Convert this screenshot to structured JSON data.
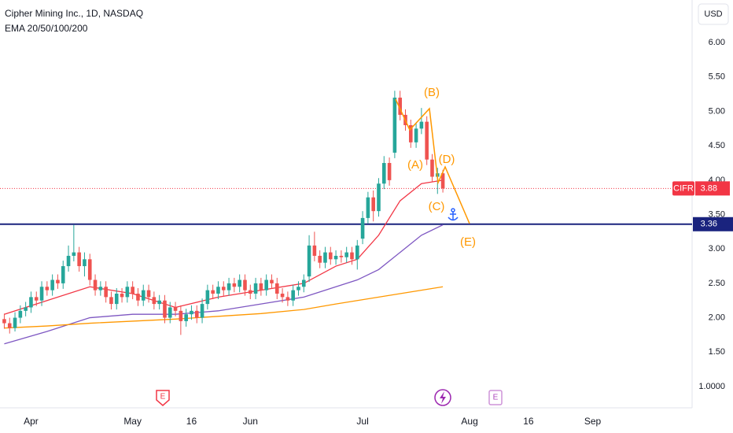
{
  "chart_data": {
    "type": "candlestick",
    "title": "Cipher Mining Inc., 1D, NASDAQ",
    "subtitle": "EMA 20/50/100/200",
    "currency": "USD",
    "symbol": "CIFR",
    "last_price": 3.88,
    "level": 3.36,
    "up_color": "#26a69a",
    "down_color": "#ef5350",
    "open": [
      1.98,
      1.92,
      1.85,
      2.0,
      2.1,
      2.15,
      2.3,
      2.25,
      2.45,
      2.4,
      2.55,
      2.5,
      2.75,
      2.9,
      2.95,
      2.75,
      2.85,
      2.55,
      2.4,
      2.45,
      2.3,
      2.2,
      2.35,
      2.3,
      2.45,
      2.35,
      2.25,
      2.4,
      2.3,
      2.2,
      2.25,
      2.0,
      2.15,
      2.1,
      1.95,
      2.05,
      2.1,
      2.0,
      2.2,
      2.4,
      2.35,
      2.45,
      2.4,
      2.5,
      2.45,
      2.55,
      2.4,
      2.35,
      2.5,
      2.4,
      2.55,
      2.5,
      2.35,
      2.3,
      2.25,
      2.4,
      2.45,
      2.6,
      3.05,
      2.9,
      2.8,
      2.95,
      2.85,
      2.9,
      2.88,
      2.95,
      2.85,
      3.15,
      3.45,
      3.75,
      3.55,
      3.95,
      4.25,
      4.4,
      5.2,
      4.95,
      4.8,
      4.55,
      4.75,
      4.85,
      4.3,
      4.05,
      4.1
    ],
    "high": [
      2.06,
      2.0,
      2.08,
      2.18,
      2.23,
      2.38,
      2.38,
      2.53,
      2.53,
      2.63,
      2.63,
      2.83,
      3.05,
      3.35,
      3.03,
      2.95,
      2.93,
      2.63,
      2.53,
      2.53,
      2.38,
      2.43,
      2.43,
      2.53,
      2.53,
      2.43,
      2.48,
      2.48,
      2.38,
      2.33,
      2.33,
      2.23,
      2.23,
      2.18,
      2.13,
      2.18,
      2.18,
      2.28,
      2.48,
      2.48,
      2.53,
      2.53,
      2.58,
      2.58,
      2.63,
      2.63,
      2.48,
      2.58,
      2.58,
      2.63,
      2.63,
      2.58,
      2.43,
      2.38,
      2.48,
      2.53,
      2.63,
      3.2,
      3.25,
      2.98,
      3.03,
      3.03,
      2.98,
      2.98,
      3.03,
      3.03,
      3.13,
      3.55,
      3.83,
      3.85,
      4.03,
      4.35,
      4.33,
      5.3,
      5.3,
      5.03,
      4.88,
      4.83,
      5.05,
      4.93,
      4.38,
      4.18,
      4.15
    ],
    "low": [
      1.84,
      1.77,
      1.8,
      1.92,
      2.02,
      2.07,
      2.17,
      2.17,
      2.32,
      2.32,
      2.42,
      2.42,
      2.67,
      2.82,
      2.67,
      2.6,
      2.47,
      2.32,
      2.32,
      2.22,
      2.12,
      2.12,
      2.22,
      2.22,
      2.27,
      2.17,
      2.17,
      2.22,
      2.12,
      2.12,
      1.92,
      1.92,
      2.02,
      1.75,
      1.87,
      1.97,
      1.92,
      1.92,
      2.12,
      2.27,
      2.27,
      2.32,
      2.32,
      2.37,
      2.37,
      2.32,
      2.27,
      2.27,
      2.32,
      2.32,
      2.42,
      2.27,
      2.22,
      2.17,
      2.17,
      2.32,
      2.37,
      2.52,
      2.82,
      2.72,
      2.72,
      2.77,
      2.77,
      2.8,
      2.8,
      2.77,
      2.7,
      3.07,
      3.37,
      3.4,
      3.47,
      3.87,
      3.92,
      4.32,
      4.87,
      4.72,
      4.47,
      4.47,
      4.67,
      4.22,
      3.97,
      3.8,
      3.82
    ],
    "close": [
      1.92,
      1.85,
      2.0,
      2.1,
      2.15,
      2.3,
      2.25,
      2.45,
      2.4,
      2.55,
      2.5,
      2.75,
      2.9,
      2.95,
      2.75,
      2.85,
      2.55,
      2.4,
      2.45,
      2.3,
      2.2,
      2.35,
      2.3,
      2.45,
      2.35,
      2.25,
      2.4,
      2.3,
      2.2,
      2.25,
      2.0,
      2.15,
      2.1,
      1.95,
      2.05,
      2.1,
      2.0,
      2.2,
      2.4,
      2.35,
      2.45,
      2.4,
      2.5,
      2.45,
      2.55,
      2.4,
      2.35,
      2.5,
      2.4,
      2.55,
      2.5,
      2.35,
      2.3,
      2.25,
      2.4,
      2.45,
      2.55,
      3.05,
      2.9,
      2.8,
      2.95,
      2.85,
      2.9,
      2.88,
      2.95,
      2.85,
      3.05,
      3.45,
      3.75,
      3.55,
      3.95,
      4.25,
      4.0,
      5.2,
      4.95,
      4.8,
      4.55,
      4.75,
      4.85,
      4.3,
      4.05,
      4.1,
      3.88
    ],
    "series": [
      {
        "color": "#f23645",
        "x": [
          0,
          8,
          16,
          24,
          32,
          40,
          48,
          56,
          62,
          66,
          70,
          74,
          78,
          82
        ],
        "values": [
          2.05,
          2.25,
          2.45,
          2.35,
          2.15,
          2.3,
          2.4,
          2.5,
          2.75,
          2.85,
          3.2,
          3.7,
          3.95,
          4.0
        ]
      },
      {
        "color": "#7e57c2",
        "x": [
          0,
          8,
          16,
          24,
          32,
          40,
          48,
          56,
          62,
          66,
          70,
          74,
          78,
          82
        ],
        "values": [
          1.62,
          1.8,
          2.0,
          2.05,
          2.05,
          2.1,
          2.2,
          2.3,
          2.45,
          2.55,
          2.7,
          2.95,
          3.2,
          3.35
        ]
      },
      {
        "color": "#ff9800",
        "x": [
          0,
          8,
          16,
          24,
          32,
          40,
          48,
          56,
          62,
          66,
          70,
          74,
          78,
          82
        ],
        "values": [
          1.85,
          1.88,
          1.92,
          1.95,
          1.98,
          2.02,
          2.06,
          2.12,
          2.2,
          2.25,
          2.3,
          2.35,
          2.4,
          2.45
        ]
      }
    ],
    "annotations": [
      "(A)",
      "(B)",
      "(C)",
      "(D)",
      "(E)"
    ],
    "event_label": "E",
    "xlim": [
      -0.8,
      128.6
    ],
    "ylim": [
      0.69,
      6.62
    ],
    "xticks": [
      {
        "value": 5,
        "label": "Apr"
      },
      {
        "value": 24,
        "label": "May"
      },
      {
        "value": 35,
        "label": "16"
      },
      {
        "value": 46,
        "label": "Jun"
      },
      {
        "value": 67,
        "label": "Jul"
      },
      {
        "value": 87,
        "label": "Aug"
      },
      {
        "value": 98,
        "label": "16"
      },
      {
        "value": 110,
        "label": "Sep"
      }
    ],
    "yticks": [
      {
        "value": 1,
        "label": "1.0000"
      },
      {
        "value": 1.5,
        "label": "1.50"
      },
      {
        "value": 2,
        "label": "2.00"
      },
      {
        "value": 2.5,
        "label": "2.50"
      },
      {
        "value": 3,
        "label": "3.00"
      },
      {
        "value": 3.5,
        "label": "3.50"
      },
      {
        "value": 4,
        "label": "4.00"
      },
      {
        "value": 4.5,
        "label": "4.50"
      },
      {
        "value": 5,
        "label": "5.00"
      },
      {
        "value": 5.5,
        "label": "5.50"
      },
      {
        "value": 6,
        "label": "6.00"
      }
    ],
    "grid": false
  }
}
